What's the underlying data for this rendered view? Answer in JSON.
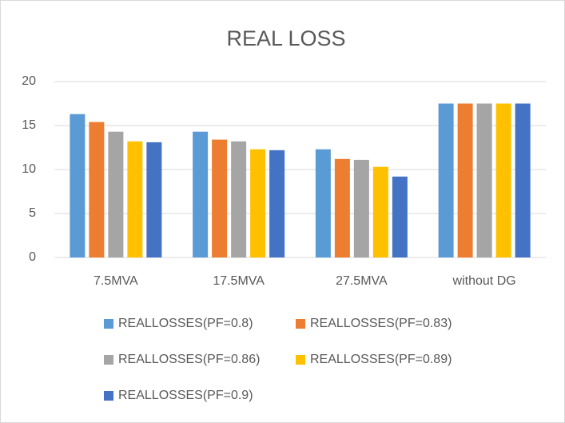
{
  "chart_data": {
    "type": "bar",
    "title": "REAL LOSS",
    "categories": [
      "7.5MVA",
      "17.5MVA",
      "27.5MVA",
      "without DG"
    ],
    "series": [
      {
        "name": "REALLOSSES(PF=0.8)",
        "color": "#5b9bd5",
        "values": [
          16.3,
          14.3,
          12.3,
          17.5
        ]
      },
      {
        "name": "REALLOSSES(PF=0.83)",
        "color": "#ed7d31",
        "values": [
          15.4,
          13.4,
          11.2,
          17.5
        ]
      },
      {
        "name": "REALLOSSES(PF=0.86)",
        "color": "#a5a5a5",
        "values": [
          14.3,
          13.2,
          11.1,
          17.5
        ]
      },
      {
        "name": "REALLOSSES(PF=0.89)",
        "color": "#ffc000",
        "values": [
          13.2,
          12.3,
          10.3,
          17.5
        ]
      },
      {
        "name": "REALLOSSES(PF=0.9)",
        "color": "#4472c4",
        "values": [
          13.1,
          12.2,
          9.2,
          17.5
        ]
      }
    ],
    "ylim": [
      0,
      20
    ],
    "yticks": [
      0,
      5,
      10,
      15,
      20
    ],
    "grid": true,
    "legend": "bottom"
  }
}
